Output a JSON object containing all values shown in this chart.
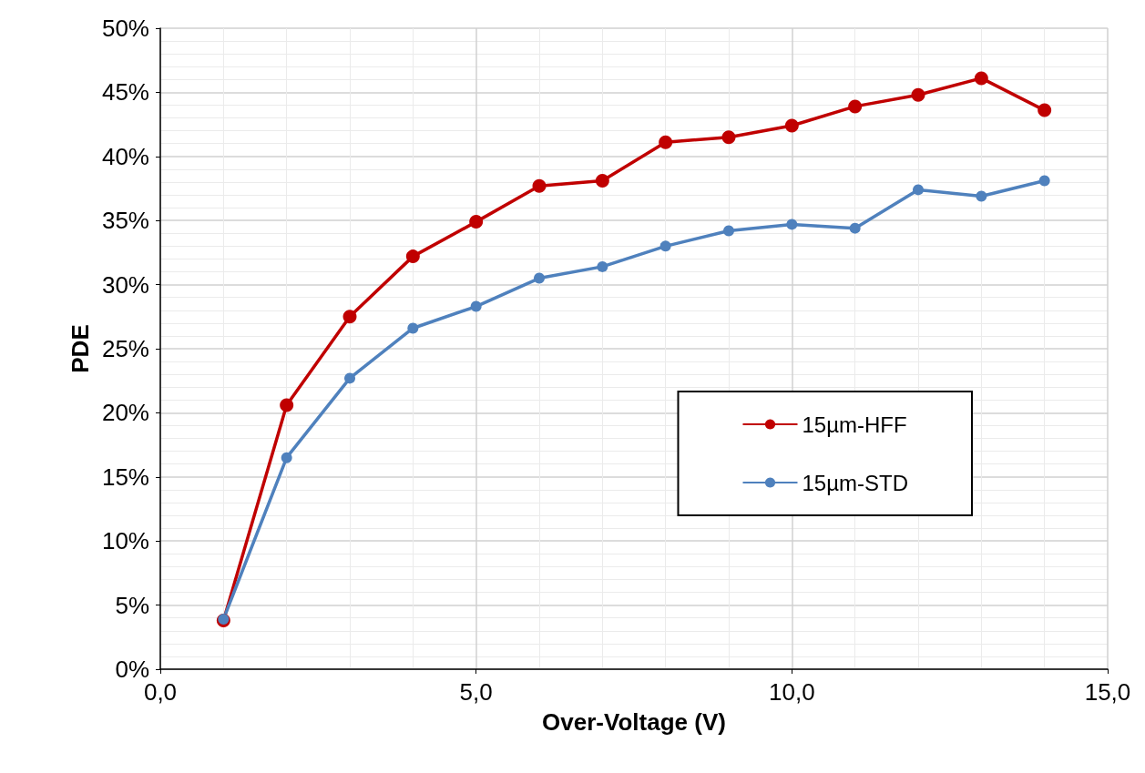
{
  "chart_data": {
    "type": "line",
    "xlabel": "Over-Voltage (V)",
    "ylabel": "PDE",
    "x": [
      1,
      2,
      3,
      4,
      5,
      6,
      7,
      8,
      9,
      10,
      11,
      12,
      13,
      14
    ],
    "series": [
      {
        "name": "15µm-HFF",
        "color": "#c00000",
        "values": [
          3.8,
          20.6,
          27.5,
          32.2,
          34.9,
          37.7,
          38.1,
          41.1,
          41.5,
          42.4,
          43.9,
          44.8,
          46.1,
          43.6
        ]
      },
      {
        "name": "15µm-STD",
        "color": "#4f81bd",
        "values": [
          3.9,
          16.5,
          22.7,
          26.6,
          28.3,
          30.5,
          31.4,
          33.0,
          34.2,
          34.7,
          34.4,
          37.4,
          36.9,
          38.1
        ]
      }
    ],
    "xlim": [
      0,
      15
    ],
    "xticks": [
      {
        "value": 0,
        "label": "0,0"
      },
      {
        "value": 5,
        "label": "5,0"
      },
      {
        "value": 10,
        "label": "10,0"
      },
      {
        "value": 15,
        "label": "15,0"
      }
    ],
    "ylim": [
      0,
      50
    ],
    "yticks": [
      {
        "value": 0,
        "label": "0%"
      },
      {
        "value": 5,
        "label": "5%"
      },
      {
        "value": 10,
        "label": "10%"
      },
      {
        "value": 15,
        "label": "15%"
      },
      {
        "value": 20,
        "label": "20%"
      },
      {
        "value": 25,
        "label": "25%"
      },
      {
        "value": 30,
        "label": "30%"
      },
      {
        "value": 35,
        "label": "35%"
      },
      {
        "value": 40,
        "label": "40%"
      },
      {
        "value": 45,
        "label": "45%"
      },
      {
        "value": 50,
        "label": "50%"
      }
    ],
    "grid": true,
    "legend": "right",
    "marker": "circle",
    "line_style": "solid"
  }
}
